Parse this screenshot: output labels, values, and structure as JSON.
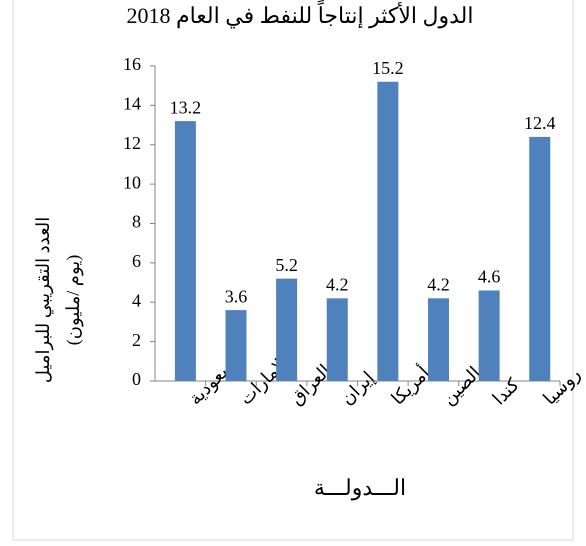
{
  "chart_data": {
    "type": "bar",
    "title": "الدول الأكثر إنتاجاً للنفط في العام 2018",
    "y_label": [
      "العدد التقريبي للبراميل",
      "(يوم /مليون)"
    ],
    "x_label": "الـــدولـــة",
    "categories": [
      "السعودية",
      "الإمارات",
      "العراق",
      "إيران",
      "أمريكا",
      "الصين",
      "كندا",
      "روسيا"
    ],
    "values": [
      13.2,
      3.6,
      5.2,
      4.2,
      15.2,
      4.2,
      4.6,
      12.4
    ],
    "color": "#4f81bd",
    "ylim": [
      0,
      16
    ],
    "yticks": [
      0,
      2,
      4,
      6,
      8,
      10,
      12,
      14,
      16
    ],
    "grid": false
  }
}
